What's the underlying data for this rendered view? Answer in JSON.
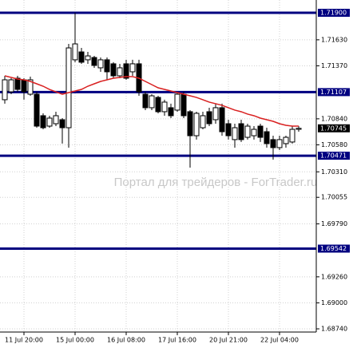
{
  "chart_data": {
    "type": "candlestick",
    "watermark": "Портал для трейдеров - ForTrader.ru",
    "categories": [
      null,
      null,
      null,
      "11 Jul 20:00",
      null,
      null,
      null,
      null,
      null,
      null,
      null,
      "15 Jul 00:00",
      null,
      null,
      null,
      null,
      null,
      null,
      null,
      "16 Jul 08:00",
      null,
      null,
      null,
      null,
      null,
      null,
      null,
      "17 Jul 16:00",
      null,
      null,
      null,
      null,
      null,
      null,
      null,
      "20 Jul 21:00",
      null,
      null,
      null,
      null,
      null,
      null,
      null,
      "22 Jul 04:00",
      null,
      null,
      null
    ],
    "open": [
      1.71031,
      1.7111,
      1.71246,
      1.7123,
      1.71086,
      1.71086,
      1.70871,
      1.70767,
      1.70791,
      1.70831,
      1.70751,
      1.7143,
      1.71509,
      1.7143,
      1.71453,
      1.7135,
      1.7143,
      1.7139,
      1.7127,
      1.7139,
      1.7131,
      1.7139,
      1.71086,
      1.70951,
      1.71054,
      1.70911,
      1.70951,
      1.70927,
      1.71086,
      1.70911,
      1.70671,
      1.70751,
      1.70911,
      1.70831,
      1.70951,
      1.70791,
      1.70632,
      1.70791,
      1.70655,
      1.70671,
      1.70767,
      1.70711,
      1.70632,
      1.70552,
      1.70592,
      1.70608,
      1.70735
    ],
    "high": [
      1.7127,
      1.71246,
      1.7127,
      1.71246,
      1.71262,
      1.7111,
      1.70895,
      1.70871,
      1.70911,
      1.70847,
      1.71589,
      1.719,
      1.71549,
      1.71509,
      1.71469,
      1.71453,
      1.71453,
      1.71406,
      1.7139,
      1.7143,
      1.7143,
      1.7143,
      1.7111,
      1.71086,
      1.7107,
      1.71031,
      1.70991,
      1.7111,
      1.7111,
      1.70927,
      1.70911,
      1.70911,
      1.70951,
      1.70991,
      1.70991,
      1.70831,
      1.70791,
      1.70831,
      1.70791,
      1.70767,
      1.70791,
      1.70751,
      1.70671,
      1.70671,
      1.70671,
      1.70767,
      1.70767
    ],
    "low": [
      1.70991,
      1.71086,
      1.7111,
      1.71031,
      1.7107,
      1.70751,
      1.70735,
      1.70751,
      1.70767,
      1.70592,
      1.70552,
      1.71406,
      1.7139,
      1.7139,
      1.7135,
      1.7131,
      1.7123,
      1.71246,
      1.71246,
      1.7123,
      1.7127,
      1.7107,
      1.70927,
      1.70927,
      1.70895,
      1.70871,
      1.70847,
      1.70911,
      1.70847,
      1.70352,
      1.70632,
      1.70735,
      1.70767,
      1.70791,
      1.70671,
      1.70632,
      1.70552,
      1.70608,
      1.70632,
      1.70632,
      1.70608,
      1.70552,
      1.70432,
      1.70528,
      1.70552,
      1.70592,
      1.70711
    ],
    "close": [
      1.7123,
      1.7123,
      1.71134,
      1.7111,
      1.7123,
      1.70767,
      1.70751,
      1.70847,
      1.70871,
      1.70751,
      1.71549,
      1.71589,
      1.71406,
      1.71469,
      1.71374,
      1.7143,
      1.7131,
      1.7127,
      1.7135,
      1.71246,
      1.7139,
      1.7111,
      1.70951,
      1.7107,
      1.70911,
      1.71007,
      1.70871,
      1.71086,
      1.70871,
      1.70671,
      1.70895,
      1.70871,
      1.70791,
      1.70951,
      1.70711,
      1.70671,
      1.70751,
      1.70632,
      1.70767,
      1.70735,
      1.70655,
      1.70592,
      1.70552,
      1.70632,
      1.70655,
      1.70735,
      1.70745
    ],
    "bull_color": "#ffffff",
    "bear_color": "#000000",
    "moving_average": {
      "color": "#d92020",
      "values": [
        1.7127,
        1.71254,
        1.71238,
        1.7123,
        1.71214,
        1.7119,
        1.71166,
        1.71134,
        1.7111,
        1.71086,
        1.71102,
        1.71118,
        1.71134,
        1.71166,
        1.7119,
        1.71214,
        1.7123,
        1.71246,
        1.71254,
        1.71262,
        1.71262,
        1.71246,
        1.71214,
        1.71182,
        1.7115,
        1.71134,
        1.71118,
        1.71102,
        1.71086,
        1.7107,
        1.71054,
        1.71031,
        1.71007,
        1.70991,
        1.70975,
        1.70951,
        1.70927,
        1.70911,
        1.70887,
        1.70871,
        1.70847,
        1.70831,
        1.70815,
        1.70791,
        1.70775,
        1.70767,
        1.70767
      ]
    },
    "levels": [
      {
        "value": 1.719,
        "label": "1.71900"
      },
      {
        "value": 1.71107,
        "label": "1.71107"
      },
      {
        "value": 1.70471,
        "label": "1.70471"
      },
      {
        "value": 1.69542,
        "label": "1.69542"
      }
    ],
    "level_color": "#000080",
    "current_price": {
      "value": 1.70745,
      "label": "1.70745"
    },
    "ylim": [
      1.68708,
      1.72028
    ],
    "yticks": [
      {
        "value": 1.7163,
        "label": "1.71630"
      },
      {
        "value": 1.7137,
        "label": "1.71370"
      },
      {
        "value": 1.7084,
        "label": "1.70840"
      },
      {
        "value": 1.7058,
        "label": "1.70580"
      },
      {
        "value": 1.7031,
        "label": "1.70310"
      },
      {
        "value": 1.70055,
        "label": "1.70055"
      },
      {
        "value": 1.6979,
        "label": "1.69790"
      },
      {
        "value": 1.6926,
        "label": "1.69260"
      },
      {
        "value": 1.69,
        "label": "1.69000"
      },
      {
        "value": 1.6874,
        "label": "1.68740"
      }
    ],
    "grid": true
  }
}
